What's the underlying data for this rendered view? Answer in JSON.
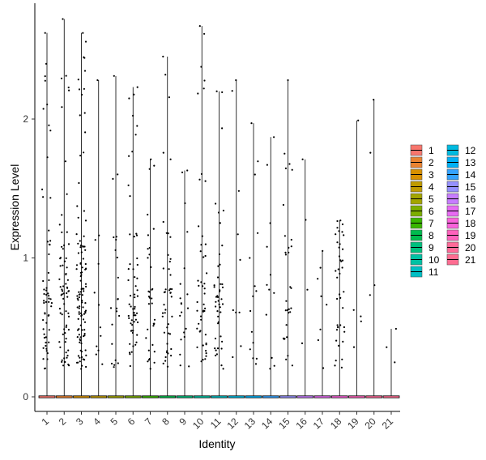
{
  "chart_data": {
    "type": "violin",
    "title": "",
    "xlabel": "Identity",
    "ylabel": "Expression Level",
    "ylim": [
      -0.1,
      2.85
    ],
    "yticks": [
      0,
      1,
      2
    ],
    "grid": false,
    "legend_position": "right",
    "categories": [
      "1",
      "2",
      "3",
      "4",
      "5",
      "6",
      "7",
      "8",
      "9",
      "10",
      "11",
      "12",
      "13",
      "14",
      "15",
      "16",
      "17",
      "18",
      "19",
      "20",
      "21"
    ],
    "colors": [
      "#F8766D",
      "#EA8331",
      "#D89000",
      "#C09B00",
      "#A3A500",
      "#7CAE00",
      "#39B600",
      "#00BB4E",
      "#00BF7D",
      "#00C1A3",
      "#00BFC4",
      "#00BAE0",
      "#00B0F6",
      "#35A2FF",
      "#9590FF",
      "#C77CFF",
      "#E76BF3",
      "#FA62DB",
      "#FF62BC",
      "#FF6A98",
      "#FF6C91"
    ],
    "max_values": [
      2.62,
      2.72,
      2.62,
      2.28,
      2.31,
      2.23,
      1.71,
      2.45,
      1.63,
      2.67,
      2.2,
      2.28,
      1.97,
      1.87,
      2.28,
      1.71,
      1.05,
      1.27,
      1.99,
      2.14,
      0.49
    ],
    "point_density": [
      58,
      70,
      110,
      12,
      22,
      60,
      35,
      45,
      20,
      48,
      45,
      10,
      15,
      12,
      30,
      4,
      8,
      40,
      5,
      4,
      3
    ]
  }
}
